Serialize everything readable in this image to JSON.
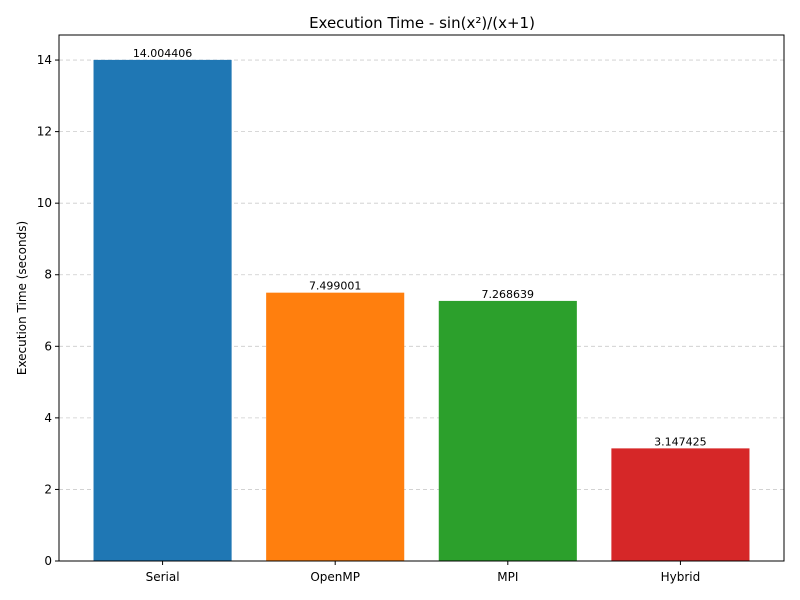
{
  "chart_data": {
    "type": "bar",
    "title": "Execution Time - sin(x²)/(x+1)",
    "xlabel": "",
    "ylabel": "Execution Time (seconds)",
    "categories": [
      "Serial",
      "OpenMP",
      "MPI",
      "Hybrid"
    ],
    "values": [
      14.004406,
      7.499001,
      7.268639,
      3.147425
    ],
    "data_labels": [
      "14.004406",
      "7.499001",
      "7.268639",
      "3.147425"
    ],
    "colors": [
      "#1f77b4",
      "#ff7f0e",
      "#2ca02c",
      "#d62728"
    ],
    "ylim": [
      0,
      14.7
    ],
    "yticks": [
      0,
      2,
      4,
      6,
      8,
      10,
      12,
      14
    ],
    "grid": "y-dashed",
    "legend": "none"
  }
}
